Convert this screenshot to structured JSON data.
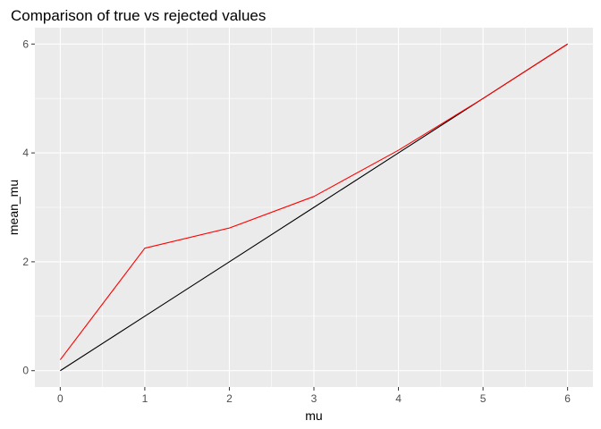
{
  "chart_data": {
    "type": "line",
    "title": "Comparison of true vs rejected values",
    "xlabel": "mu",
    "ylabel": "mean_mu",
    "xlim": [
      -0.3,
      6.3
    ],
    "ylim": [
      -0.3,
      6.3
    ],
    "x_ticks": [
      0,
      1,
      2,
      3,
      4,
      5,
      6
    ],
    "y_ticks": [
      0,
      2,
      4,
      6
    ],
    "grid": true,
    "legend": "none",
    "background": "#ebebeb",
    "grid_color": "#ffffff",
    "series": [
      {
        "color": "#000000",
        "x": [
          0,
          1,
          2,
          3,
          4,
          5,
          6
        ],
        "y": [
          0,
          1,
          2,
          3,
          4,
          5,
          6
        ]
      },
      {
        "color": "#ff0000",
        "x": [
          0,
          1,
          2,
          3,
          4,
          5,
          6
        ],
        "y": [
          0.2,
          2.25,
          2.62,
          3.2,
          4.05,
          5.0,
          6.0
        ]
      }
    ]
  }
}
